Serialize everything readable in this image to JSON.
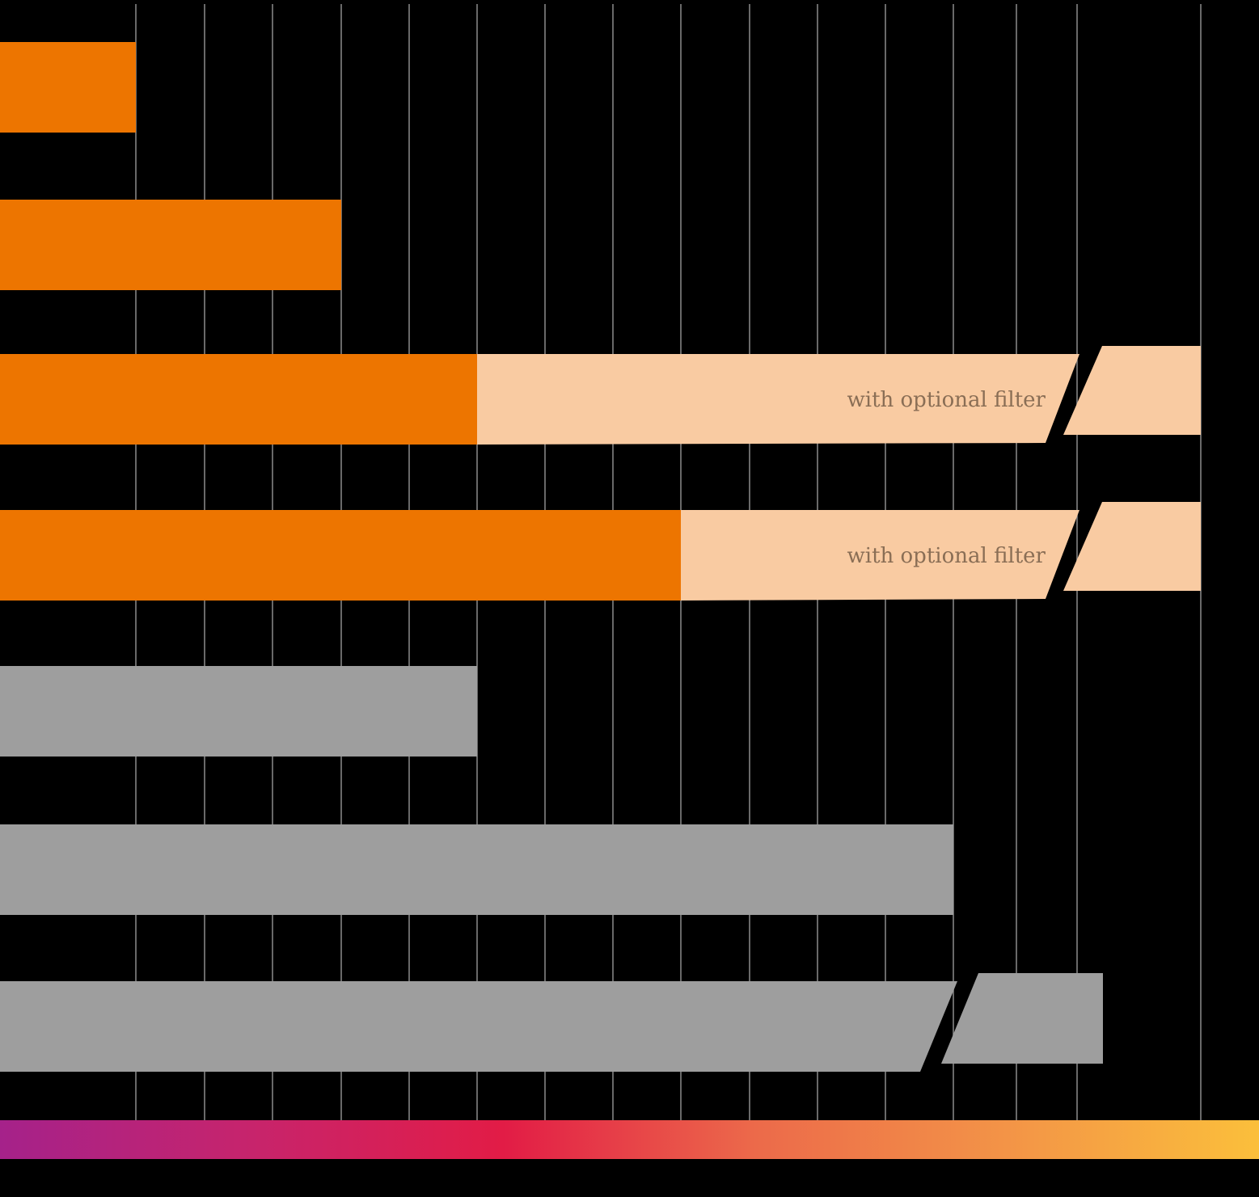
{
  "chart_data": {
    "type": "bar",
    "orientation": "horizontal",
    "x_min": 0,
    "gridlines": [
      2,
      3,
      4,
      5,
      6,
      7,
      8,
      9,
      10,
      11,
      12,
      13,
      14,
      15,
      16,
      18
    ],
    "grid": true,
    "colors": {
      "background": "#000000",
      "primary": "#ED7500",
      "optional": "#F9CBA2",
      "neutral": "#9E9E9E",
      "grid": "#8C8C8C",
      "annotation_text": "#8A6E55"
    },
    "annotation_label": "with optional filter",
    "gradient_bar": [
      "#A5228A",
      "#C7246C",
      "#E21C46",
      "#EC6A4A",
      "#F39447",
      "#FBBF3B"
    ],
    "bars": [
      {
        "value": 2,
        "color": "primary"
      },
      {
        "value": 5,
        "color": "primary"
      },
      {
        "value": 7,
        "color": "primary",
        "extension": {
          "value": 18,
          "color": "optional",
          "broken": true,
          "annotation": "with optional filter"
        }
      },
      {
        "value": 10,
        "color": "primary",
        "extension": {
          "value": 18,
          "color": "optional",
          "broken": true,
          "annotation": "with optional filter"
        }
      },
      {
        "value": 7,
        "color": "neutral"
      },
      {
        "value": 14,
        "color": "neutral"
      },
      {
        "value": 16,
        "color": "neutral",
        "broken": true
      }
    ]
  }
}
